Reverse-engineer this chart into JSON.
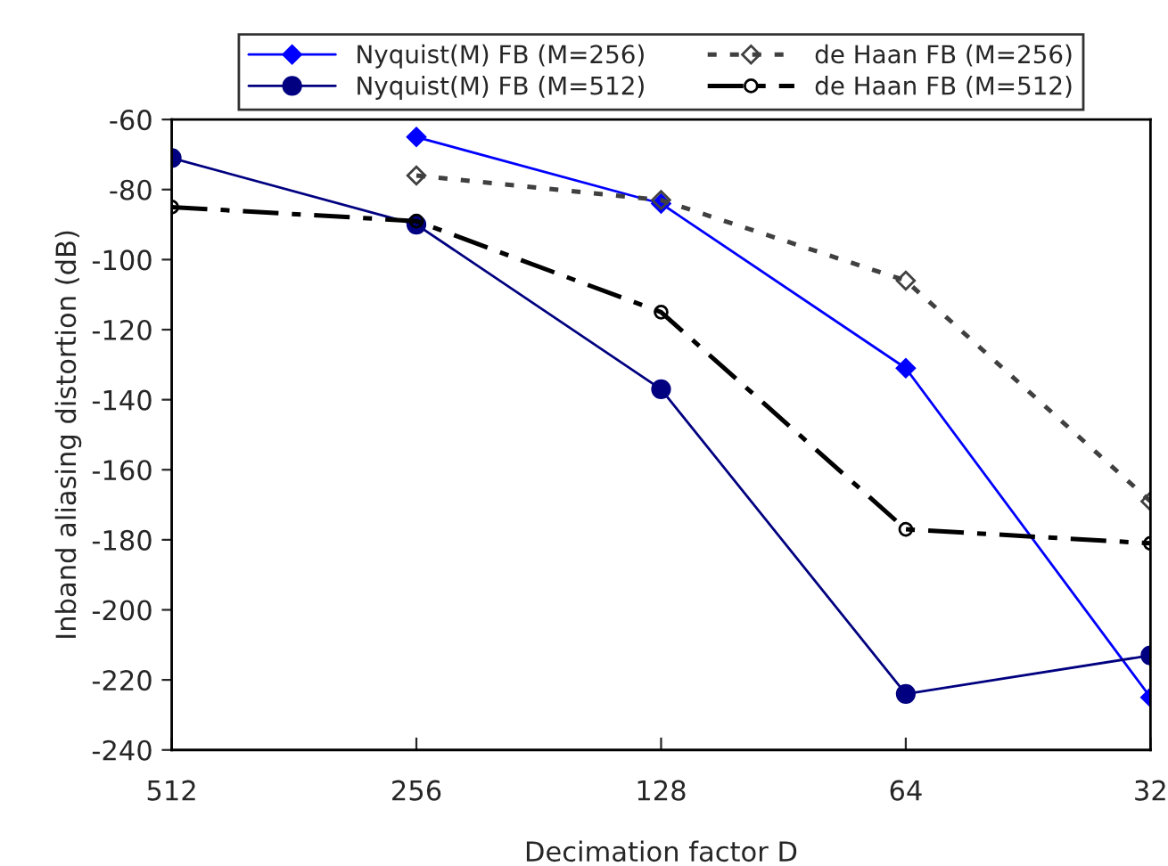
{
  "chart_data": {
    "type": "line",
    "xlabel": "Decimation factor D",
    "ylabel": "Inband aliasing distortion (dB)",
    "categories": [
      "512",
      "256",
      "128",
      "64",
      "32"
    ],
    "ylim": [
      -240,
      -60
    ],
    "yticks": [
      -240,
      -220,
      -200,
      -180,
      -160,
      -140,
      -120,
      -100,
      -80,
      -60
    ],
    "grid": false,
    "legend": "top",
    "series": [
      {
        "name": "Nyquist(M) FB (M=256)",
        "color": "#0000ff",
        "marker": "diamond",
        "line_style": "solid",
        "values": [
          null,
          -65,
          -84,
          -131,
          -225
        ]
      },
      {
        "name": "Nyquist(M) FB (M=512)",
        "color": "#000080",
        "marker": "circle",
        "line_style": "solid",
        "values": [
          -71,
          -90,
          -137,
          -224,
          -213
        ]
      },
      {
        "name": "de Haan FB (M=256)",
        "color": "#404040",
        "marker": "diamond",
        "line_style": "dotted",
        "values": [
          null,
          -76,
          -83,
          -106,
          -169
        ]
      },
      {
        "name": "de Haan FB (M=512)",
        "color": "#000000",
        "marker": "circle",
        "line_style": "dashdot",
        "values": [
          -85,
          -89,
          -115,
          -177,
          -181
        ]
      }
    ]
  }
}
